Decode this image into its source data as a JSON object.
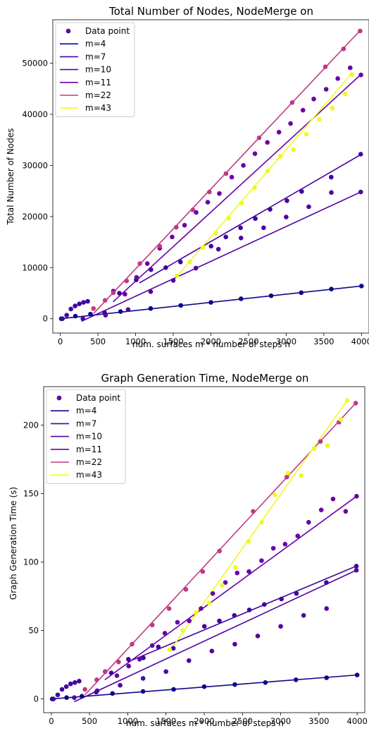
{
  "chart_data": [
    {
      "type": "scatter",
      "title": "Total Number of Nodes, NodeMerge on",
      "xlabel": "num. surfaces m * number of steps n",
      "ylabel": "Total Number of Nodes",
      "xlim": [
        -100,
        4100
      ],
      "ylim": [
        -2800,
        58500
      ],
      "xticks": [
        0,
        500,
        1000,
        1500,
        2000,
        2500,
        3000,
        3500,
        4000
      ],
      "yticks": [
        0,
        10000,
        20000,
        30000,
        40000,
        50000
      ],
      "grid": false,
      "legend": "top-left",
      "legend_marker_label": "Data point",
      "legend_marker_color": "#5b0fa0",
      "series": [
        {
          "name": "m=4",
          "color": "#0d0887",
          "x": [
            12,
            200,
            400,
            800,
            1200,
            1600,
            2000,
            2400,
            2800,
            3200,
            3600,
            4000
          ],
          "y": [
            0,
            500,
            900,
            1400,
            2000,
            2600,
            3200,
            3900,
            4500,
            5100,
            5800,
            6400
          ],
          "fit_x": [
            0,
            4000
          ],
          "fit_y": [
            0,
            6400
          ]
        },
        {
          "name": "m=7",
          "color": "#41049d",
          "x": [
            28,
            84,
            140,
            196,
            252,
            308,
            364,
            588,
            784,
            1008,
            1204,
            1400,
            1596,
            2002,
            2198,
            2394,
            2590,
            2786,
            3010,
            3206,
            3598,
            3990
          ],
          "y": [
            0,
            700,
            1900,
            2500,
            2900,
            3200,
            3400,
            1200,
            5000,
            7600,
            9600,
            10000,
            11100,
            14200,
            16000,
            17800,
            19600,
            21400,
            23100,
            24900,
            27700,
            32200
          ],
          "fit_x": [
            1050,
            3990
          ],
          "fit_y": [
            7000,
            32100
          ]
        },
        {
          "name": "m=10",
          "color": "#5102a3",
          "x": [
            300,
            600,
            900,
            1200,
            1500,
            1800,
            2100,
            2400,
            2700,
            3000,
            3300,
            3600,
            3990
          ],
          "y": [
            0,
            700,
            1800,
            5300,
            7500,
            9900,
            13600,
            15800,
            17800,
            19900,
            21900,
            24700,
            24800
          ],
          "fit_x": [
            280,
            3990
          ],
          "fit_y": [
            -500,
            24800
          ]
        },
        {
          "name": "m=11",
          "color": "#6a00a8",
          "x": [
            704,
            858,
            1012,
            1155,
            1320,
            1485,
            1650,
            1804,
            1958,
            2112,
            2277,
            2431,
            2585,
            2750,
            2904,
            3058,
            3223,
            3366,
            3531,
            3685,
            3850,
            3993
          ],
          "y": [
            5400,
            4800,
            8100,
            10800,
            13800,
            16000,
            18300,
            20800,
            22800,
            24500,
            27700,
            30000,
            32300,
            34500,
            36500,
            38200,
            40800,
            43000,
            44900,
            47000,
            49100,
            47700
          ],
          "fit_x": [
            700,
            3993
          ],
          "fit_y": [
            3300,
            47800
          ]
        },
        {
          "name": "m=22",
          "color": "#bf3984",
          "x": [
            440,
            594,
            704,
            880,
            1056,
            1320,
            1540,
            1760,
            1980,
            2200,
            2640,
            3080,
            3520,
            3762,
            3982
          ],
          "y": [
            2000,
            3600,
            5100,
            7400,
            10800,
            14200,
            17900,
            21300,
            24800,
            28400,
            35400,
            42300,
            49300,
            52800,
            56300
          ],
          "fit_x": [
            440,
            3982
          ],
          "fit_y": [
            1000,
            56400
          ]
        },
        {
          "name": "m=43",
          "color": "#f0f921",
          "x": [
            1548,
            1720,
            1892,
            2064,
            2236,
            2408,
            2580,
            2752,
            2924,
            3096,
            3268,
            3440,
            3612,
            3784,
            3870
          ],
          "y": [
            8400,
            11100,
            13900,
            16800,
            19700,
            22600,
            25600,
            28900,
            31800,
            33100,
            36100,
            39000,
            41200,
            44000,
            47800
          ],
          "fit_x": [
            1548,
            3870
          ],
          "fit_y": [
            8300,
            48000
          ]
        }
      ]
    },
    {
      "type": "scatter",
      "title": "Graph Generation Time, NodeMerge on",
      "xlabel": "num. surfaces m * number of steps n",
      "ylabel": "Graph Generation Time (s)",
      "xlim": [
        -100,
        4100
      ],
      "ylim": [
        -10,
        228
      ],
      "xticks": [
        0,
        500,
        1000,
        1500,
        2000,
        2500,
        3000,
        3500,
        4000
      ],
      "yticks": [
        0,
        50,
        100,
        150,
        200
      ],
      "grid": false,
      "legend": "top-left",
      "legend_marker_label": "Data point",
      "legend_marker_color": "#5b0fa0",
      "series": [
        {
          "name": "m=4",
          "color": "#0d0887",
          "x": [
            12,
            200,
            400,
            800,
            1200,
            1600,
            2000,
            2400,
            2800,
            3200,
            3600,
            4000
          ],
          "y": [
            0,
            1,
            2,
            4,
            5.5,
            7,
            9,
            10.5,
            12,
            14,
            15.5,
            17.5
          ],
          "fit_x": [
            0,
            4000
          ],
          "fit_y": [
            0,
            17.5
          ]
        },
        {
          "name": "m=7",
          "color": "#41049d",
          "x": [
            28,
            84,
            140,
            196,
            252,
            308,
            364,
            588,
            784,
            1008,
            1204,
            1400,
            1596,
            2002,
            2198,
            2394,
            2590,
            2786,
            3010,
            3206,
            3598,
            3990
          ],
          "y": [
            0,
            3,
            7,
            9,
            11,
            12,
            13,
            5,
            19,
            29,
            30,
            38,
            37,
            53,
            57,
            61,
            65,
            69,
            73,
            77,
            85,
            97
          ],
          "fit_x": [
            1000,
            3990
          ],
          "fit_y": [
            27,
            97
          ]
        },
        {
          "name": "m=10",
          "color": "#5102a3",
          "x": [
            300,
            600,
            900,
            1200,
            1500,
            1800,
            2100,
            2400,
            2700,
            3000,
            3300,
            3600,
            3990
          ],
          "y": [
            1,
            6,
            10,
            15,
            20,
            28,
            35,
            40,
            46,
            53,
            61,
            66,
            94
          ],
          "fit_x": [
            300,
            3990
          ],
          "fit_y": [
            -2,
            94
          ]
        },
        {
          "name": "m=11",
          "color": "#6a00a8",
          "x": [
            704,
            858,
            1012,
            1155,
            1320,
            1485,
            1650,
            1804,
            1958,
            2112,
            2277,
            2431,
            2585,
            2750,
            2904,
            3058,
            3223,
            3366,
            3531,
            3685,
            3850,
            3993
          ],
          "y": [
            20,
            17,
            24,
            29,
            39,
            48,
            56,
            57,
            66,
            77,
            85,
            92,
            93,
            101,
            110,
            113,
            119,
            129,
            138,
            146,
            137,
            148
          ],
          "fit_x": [
            700,
            3993
          ],
          "fit_y": [
            14,
            148
          ]
        },
        {
          "name": "m=22",
          "color": "#bf3984",
          "x": [
            440,
            594,
            704,
            880,
            1056,
            1320,
            1540,
            1760,
            1980,
            2200,
            2640,
            3080,
            3520,
            3762,
            3982
          ],
          "y": [
            7,
            14,
            20,
            27,
            40,
            54,
            66,
            80,
            93,
            108,
            137,
            162,
            188,
            202,
            216
          ],
          "fit_x": [
            440,
            3982
          ],
          "fit_y": [
            3,
            216
          ]
        },
        {
          "name": "m=43",
          "color": "#f0f921",
          "x": [
            1548,
            1720,
            1892,
            2064,
            2236,
            2408,
            2580,
            2752,
            2924,
            3096,
            3268,
            3440,
            3612,
            3784,
            3870
          ],
          "y": [
            36,
            50,
            63,
            70,
            83,
            96,
            115,
            129,
            149,
            165,
            163,
            183,
            185,
            204,
            218
          ],
          "fit_x": [
            1548,
            3870
          ],
          "fit_y": [
            35,
            218
          ]
        }
      ]
    }
  ]
}
